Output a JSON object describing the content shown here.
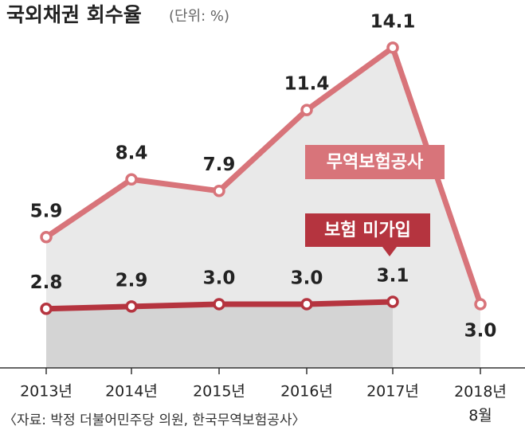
{
  "chart_data": {
    "type": "line",
    "title": "국외채권 회수율",
    "subtitle": "(단위: %)",
    "source": "〈자료: 박정 더불어민주당 의원, 한국무역보험공사〉",
    "categories": [
      "2013년",
      "2014년",
      "2015년",
      "2016년",
      "2017년",
      "2018년 8월"
    ],
    "ylim": [
      0,
      15.3
    ],
    "series": [
      {
        "name": "무역보험공사",
        "color": "#d8747a",
        "area": "#e9e9e9",
        "values": [
          5.9,
          8.4,
          7.9,
          11.4,
          14.1,
          3.0
        ],
        "value_labels": [
          "5.9",
          "8.4",
          "7.9",
          "11.4",
          "14.1",
          "3.0"
        ]
      },
      {
        "name": "보험 미가입",
        "color": "#b5343f",
        "area": "#d4d4d4",
        "values": [
          2.8,
          2.9,
          3.0,
          3.0,
          3.1,
          null
        ],
        "value_labels": [
          "2.8",
          "2.9",
          "3.0",
          "3.0",
          "3.1",
          null
        ]
      }
    ]
  }
}
